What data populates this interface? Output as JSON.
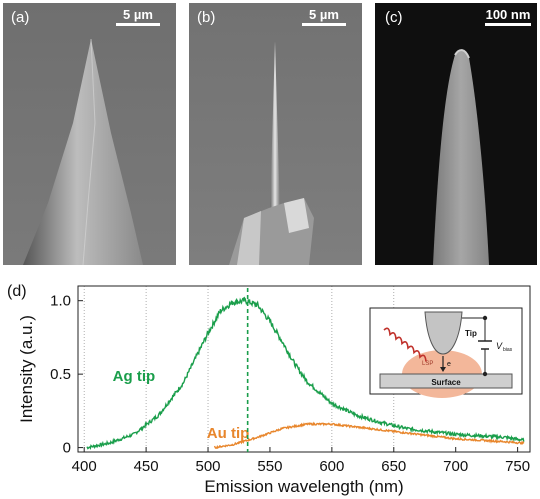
{
  "panels": [
    {
      "label": "(a)",
      "scale_text": "5 µm"
    },
    {
      "label": "(b)",
      "scale_text": "5 µm"
    },
    {
      "label": "(c)",
      "scale_text": "100 nm"
    }
  ],
  "panel_d_label": "(d)",
  "chart_data": {
    "type": "line",
    "xlabel": "Emission wavelength (nm)",
    "ylabel": "Intensity (a.u.)",
    "xlim": [
      395,
      760
    ],
    "ylim": [
      -0.03,
      1.1
    ],
    "x_ticks": [
      "400",
      "450",
      "500",
      "550",
      "600",
      "650",
      "700",
      "750"
    ],
    "y_ticks": [
      "0",
      "0.5",
      "1.0"
    ],
    "grid": "dotted vertical lines at 400, 450, 500, 600, 650",
    "vline": {
      "x": 532,
      "style": "dashed",
      "color": "#1a9e4b"
    },
    "series": [
      {
        "name": "Ag tip",
        "color": "#1a9e4b",
        "x": [
          402,
          420,
          440,
          460,
          480,
          500,
          510,
          520,
          530,
          540,
          550,
          560,
          570,
          580,
          600,
          620,
          640,
          660,
          680,
          700,
          720,
          740,
          755
        ],
        "values": [
          0.0,
          0.03,
          0.09,
          0.22,
          0.44,
          0.78,
          0.93,
          0.99,
          1.0,
          0.97,
          0.86,
          0.72,
          0.57,
          0.45,
          0.3,
          0.22,
          0.17,
          0.13,
          0.11,
          0.09,
          0.08,
          0.07,
          0.05
        ]
      },
      {
        "name": "Au tip",
        "color": "#e8862c",
        "x": [
          505,
          520,
          540,
          560,
          580,
          600,
          620,
          640,
          660,
          680,
          700,
          720,
          740,
          755
        ],
        "values": [
          0.0,
          0.02,
          0.07,
          0.13,
          0.16,
          0.16,
          0.14,
          0.12,
          0.1,
          0.08,
          0.06,
          0.05,
          0.04,
          0.03
        ]
      }
    ]
  },
  "inset": {
    "tip_label": "Tip",
    "surface_label": "Surface",
    "bias_label": "V",
    "bias_subscript": "bias",
    "lsp_label": "LSP",
    "electron_label": "e"
  }
}
